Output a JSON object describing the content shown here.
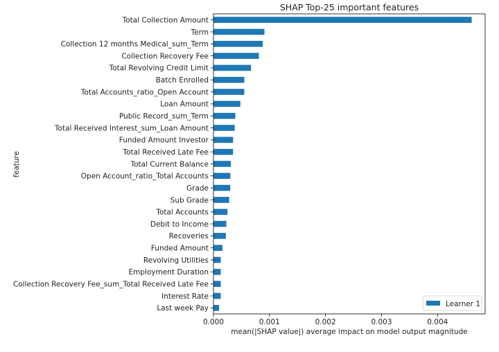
{
  "chart_data": {
    "type": "bar",
    "orientation": "horizontal",
    "title": "SHAP Top-25 important features",
    "xlabel": "mean(|SHAP value|) average impact on model output magnitude",
    "ylabel": "feature",
    "xlim": [
      0,
      0.00485
    ],
    "xticks": [
      0,
      0.001,
      0.002,
      0.003,
      0.004
    ],
    "xtick_labels": [
      "0.000",
      "0.001",
      "0.002",
      "0.003",
      "0.004"
    ],
    "grid": false,
    "legend_position": "bottom-right",
    "categories": [
      "Total Collection Amount",
      "Term",
      "Collection 12 months Medical_sum_Term",
      "Collection Recovery Fee",
      "Total Revolving Credit Limit",
      "Batch Enrolled",
      "Total Accounts_ratio_Open Account",
      "Loan Amount",
      "Public Record_sum_Term",
      "Total Received Interest_sum_Loan Amount",
      "Funded Amount Investor",
      "Total Received Late Fee",
      "Total Current Balance",
      "Open Account_ratio_Total Accounts",
      "Grade",
      "Sub Grade",
      "Total Accounts",
      "Debit to Income",
      "Recoveries",
      "Funded Amount",
      "Revolving Utilities",
      "Employment Duration",
      "Collection Recovery Fee_sum_Total Received Late Fee",
      "Interest Rate",
      "Last week Pay"
    ],
    "series": [
      {
        "name": "Learner 1",
        "color": "#1f77b4",
        "values": [
          0.00461,
          0.00091,
          0.00088,
          0.00081,
          0.00067,
          0.00055,
          0.00055,
          0.00048,
          0.00039,
          0.00038,
          0.00035,
          0.00035,
          0.00031,
          0.0003,
          0.0003,
          0.00028,
          0.00025,
          0.00023,
          0.00022,
          0.00016,
          0.00013,
          0.00013,
          0.00013,
          0.00013,
          0.0001
        ]
      }
    ]
  }
}
